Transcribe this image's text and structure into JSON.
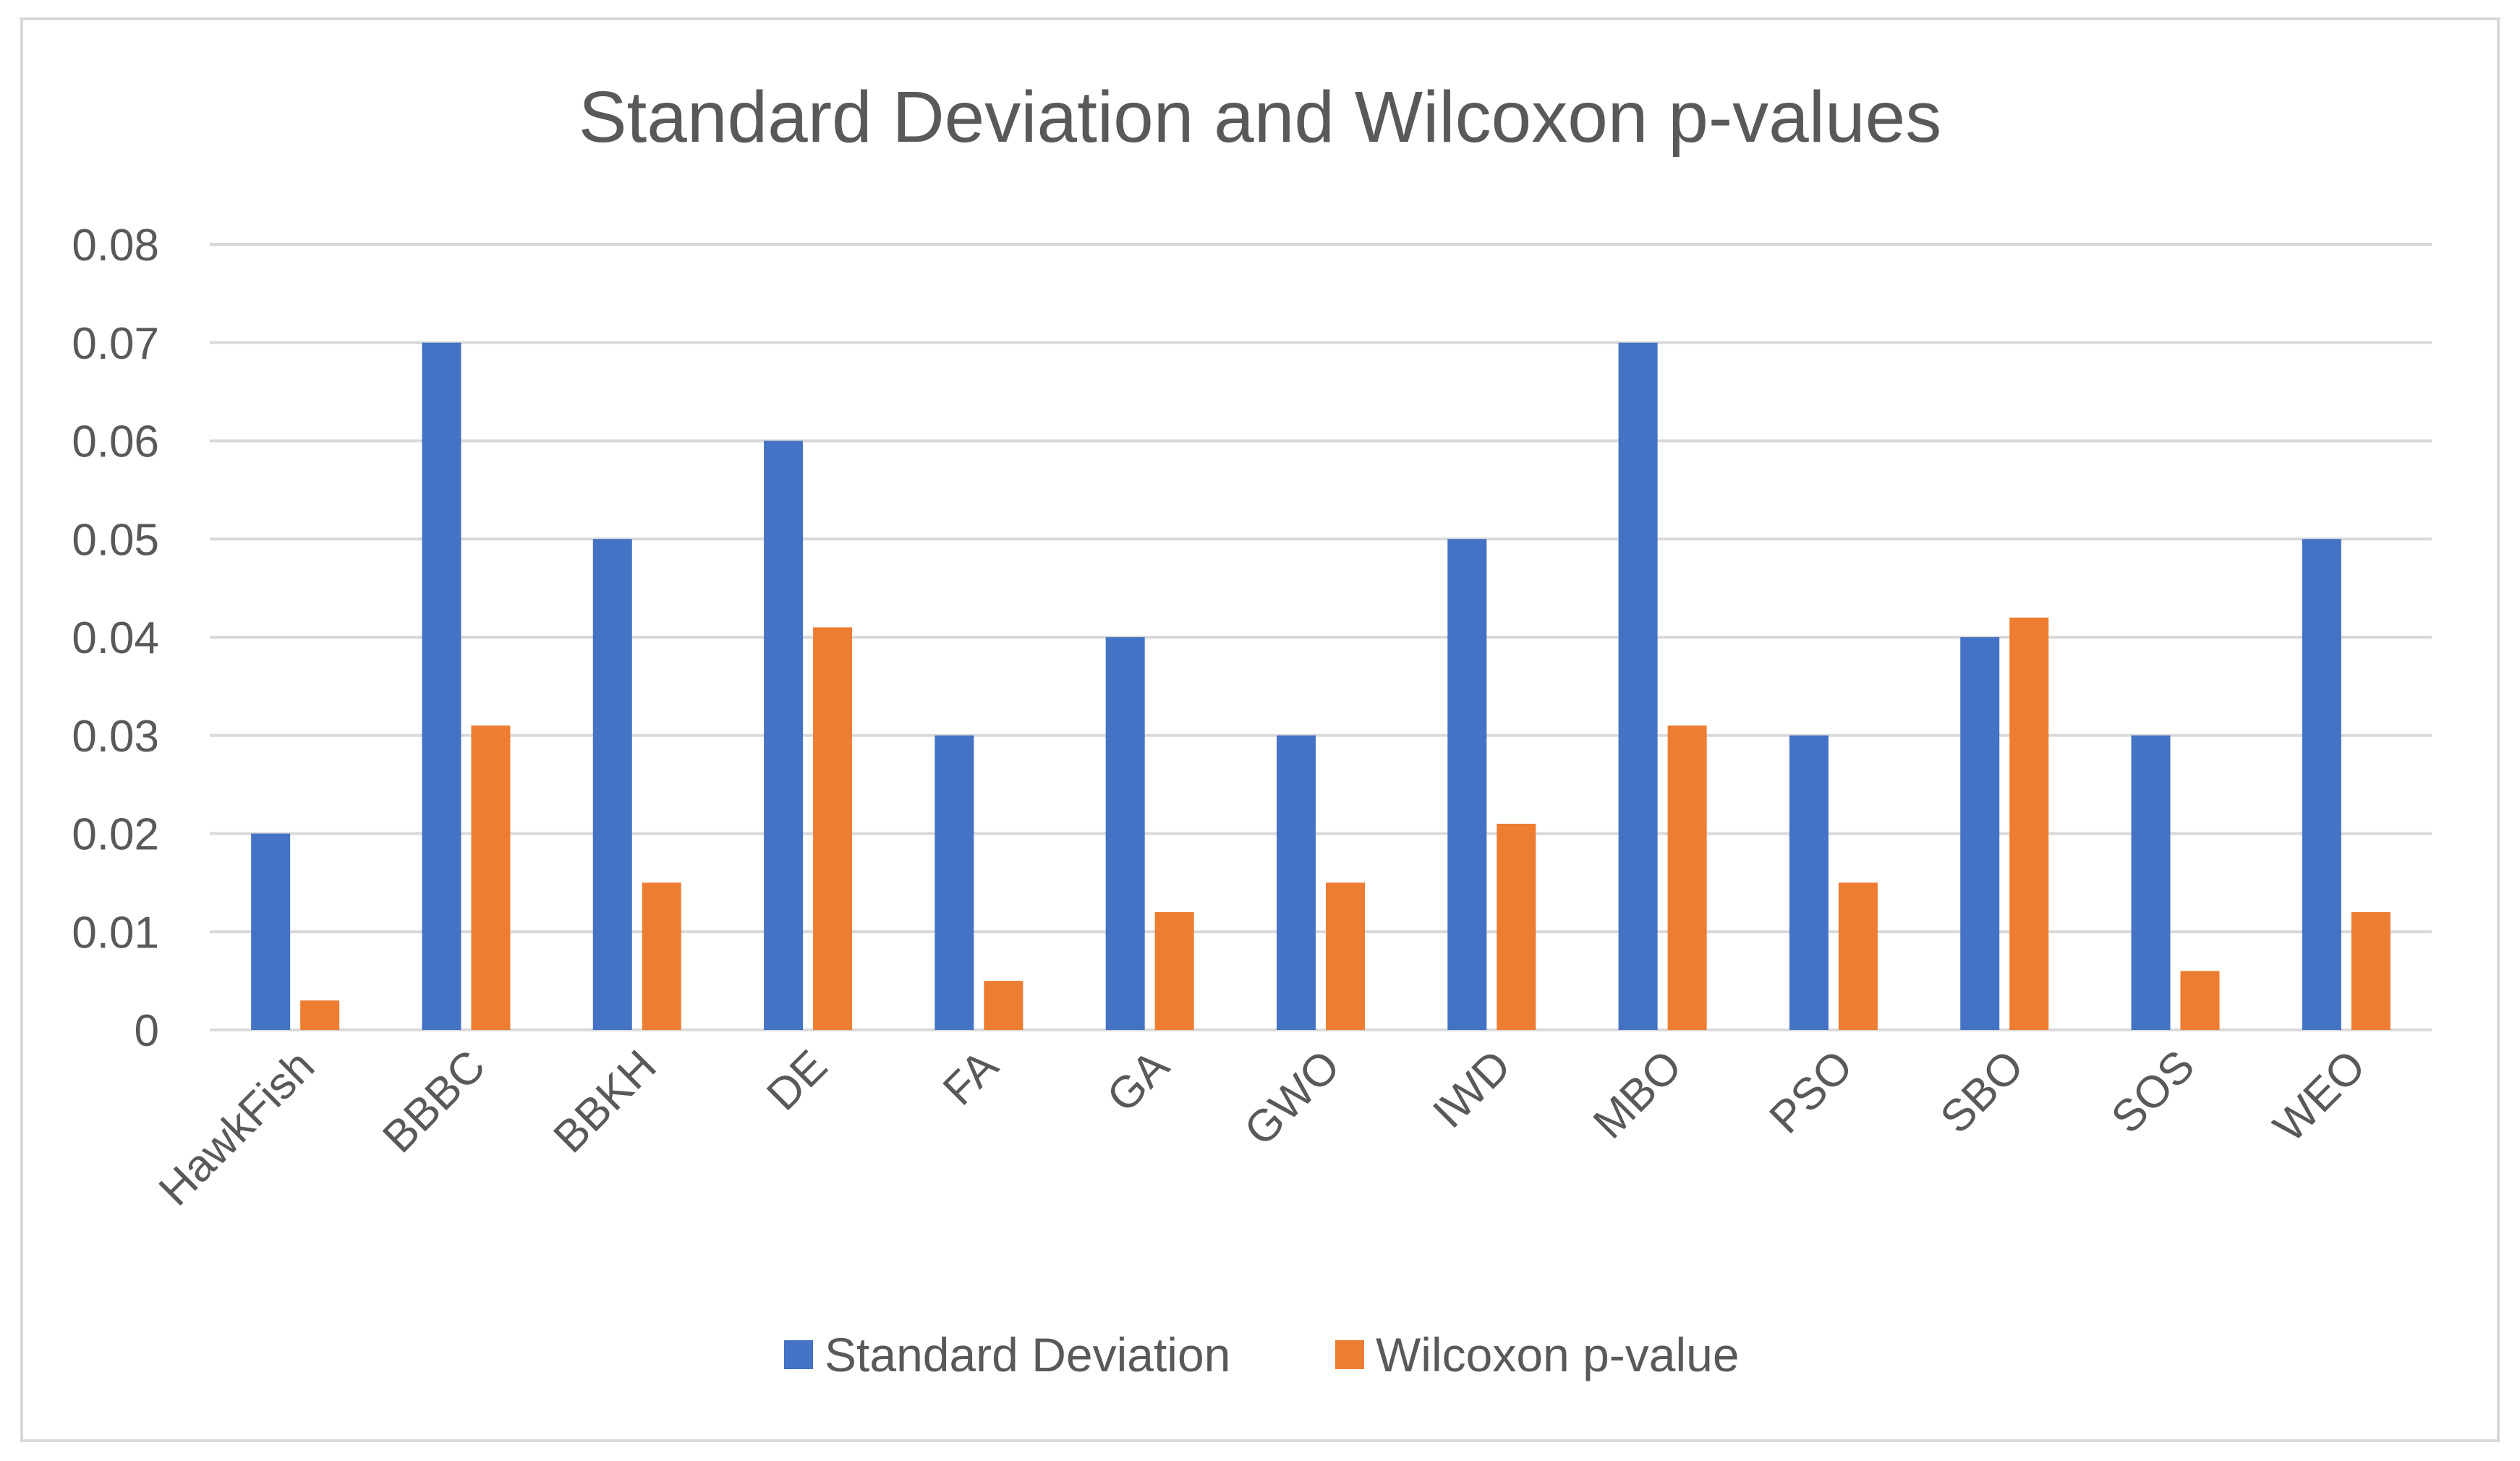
{
  "chart_data": {
    "type": "bar",
    "title": "Standard Deviation and Wilcoxon p-values",
    "xlabel": "",
    "ylabel": "",
    "ylim": [
      0,
      0.08
    ],
    "yticks": [
      "0",
      "0.01",
      "0.02",
      "0.03",
      "0.04",
      "0.05",
      "0.06",
      "0.07",
      "0.08"
    ],
    "ytick_values": [
      0,
      0.01,
      0.02,
      0.03,
      0.04,
      0.05,
      0.06,
      0.07,
      0.08
    ],
    "grid": true,
    "legend_position": "bottom",
    "categories": [
      "HawkFish",
      "BBBC",
      "BBKH",
      "DE",
      "FA",
      "GA",
      "GWO",
      "IWD",
      "MBO",
      "PSO",
      "SBO",
      "SOS",
      "WEO"
    ],
    "series": [
      {
        "name": "Standard Deviation",
        "color": "#4472C4",
        "values": [
          0.02,
          0.07,
          0.05,
          0.06,
          0.03,
          0.04,
          0.03,
          0.05,
          0.07,
          0.03,
          0.04,
          0.03,
          0.05
        ]
      },
      {
        "name": "Wilcoxon p-value",
        "color": "#ED7D31",
        "values": [
          0.003,
          0.031,
          0.015,
          0.041,
          0.005,
          0.012,
          0.015,
          0.021,
          0.031,
          0.015,
          0.042,
          0.006,
          0.012
        ]
      }
    ]
  },
  "frame": {
    "border_color": "#d9d9d9",
    "background_color": "#ffffff"
  }
}
